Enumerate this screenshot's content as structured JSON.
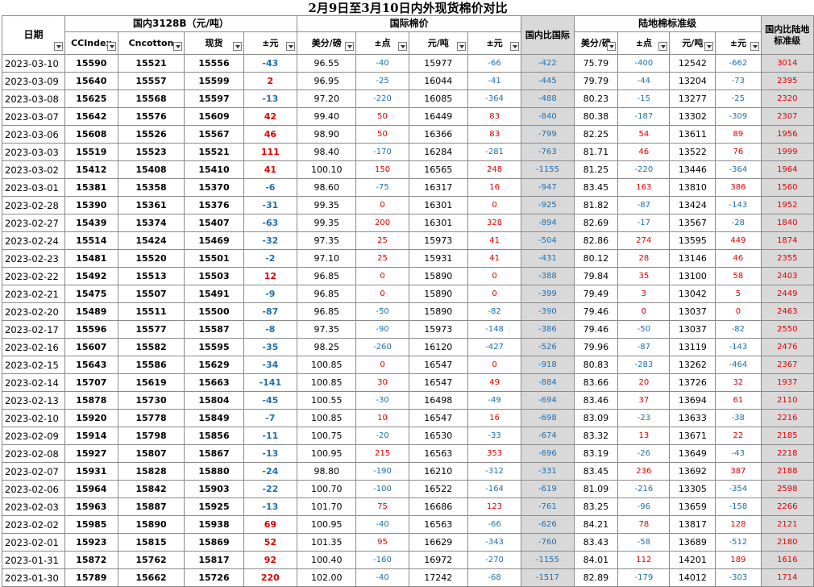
{
  "title": "2月9日至3月10日内外现货棉价对比",
  "groups": {
    "domestic": "国内3128B（元/吨）",
    "intl": "国际棉价",
    "compare_intl": "国内比国际",
    "land": "陆地棉标准级",
    "compare_land": "国内比陆地标准级"
  },
  "headers": {
    "date": "日期",
    "ccindex": "CCIndex",
    "cncotton": "Cncotton",
    "spot": "现货",
    "diff1": "±元",
    "intl_usd": "美分/磅",
    "intl_pt": "±点",
    "intl_cny": "元/吨",
    "intl_diff": "±元",
    "land_usd": "美分/磅",
    "land_pt": "±点",
    "land_cny": "元/吨",
    "land_diff": "±元"
  },
  "rows": [
    [
      "2023-03-10",
      "15590",
      "15521",
      "15556",
      "-43",
      "96.55",
      "-40",
      "15977",
      "-66",
      "-422",
      "75.79",
      "-400",
      "12542",
      "-662",
      "3014"
    ],
    [
      "2023-03-09",
      "15640",
      "15557",
      "15599",
      "2",
      "96.95",
      "-25",
      "16044",
      "-41",
      "-445",
      "79.79",
      "-44",
      "13204",
      "-73",
      "2395"
    ],
    [
      "2023-03-08",
      "15625",
      "15568",
      "15597",
      "-13",
      "97.20",
      "-220",
      "16085",
      "-364",
      "-488",
      "80.23",
      "-15",
      "13277",
      "-25",
      "2320"
    ],
    [
      "2023-03-07",
      "15642",
      "15576",
      "15609",
      "42",
      "99.40",
      "50",
      "16449",
      "83",
      "-840",
      "80.38",
      "-187",
      "13302",
      "-309",
      "2307"
    ],
    [
      "2023-03-06",
      "15608",
      "15526",
      "15567",
      "46",
      "98.90",
      "50",
      "16366",
      "83",
      "-799",
      "82.25",
      "54",
      "13611",
      "89",
      "1956"
    ],
    [
      "2023-03-03",
      "15519",
      "15523",
      "15521",
      "111",
      "98.40",
      "-170",
      "16284",
      "-281",
      "-763",
      "81.71",
      "46",
      "13522",
      "76",
      "1999"
    ],
    [
      "2023-03-02",
      "15412",
      "15408",
      "15410",
      "41",
      "100.10",
      "150",
      "16565",
      "248",
      "-1155",
      "81.25",
      "-220",
      "13446",
      "-364",
      "1964"
    ],
    [
      "2023-03-01",
      "15381",
      "15358",
      "15370",
      "-6",
      "98.60",
      "-75",
      "16317",
      "16",
      "-947",
      "83.45",
      "163",
      "13810",
      "386",
      "1560"
    ],
    [
      "2023-02-28",
      "15390",
      "15361",
      "15376",
      "-31",
      "99.35",
      "0",
      "16301",
      "0",
      "-925",
      "81.82",
      "-87",
      "13424",
      "-143",
      "1952"
    ],
    [
      "2023-02-27",
      "15439",
      "15374",
      "15407",
      "-63",
      "99.35",
      "200",
      "16301",
      "328",
      "-894",
      "82.69",
      "-17",
      "13567",
      "-28",
      "1840"
    ],
    [
      "2023-02-24",
      "15514",
      "15424",
      "15469",
      "-32",
      "97.35",
      "25",
      "15973",
      "41",
      "-504",
      "82.86",
      "274",
      "13595",
      "449",
      "1874"
    ],
    [
      "2023-02-23",
      "15481",
      "15520",
      "15501",
      "-2",
      "97.10",
      "25",
      "15931",
      "41",
      "-431",
      "80.12",
      "28",
      "13146",
      "46",
      "2355"
    ],
    [
      "2023-02-22",
      "15492",
      "15513",
      "15503",
      "12",
      "96.85",
      "0",
      "15890",
      "0",
      "-388",
      "79.84",
      "35",
      "13100",
      "58",
      "2403"
    ],
    [
      "2023-02-21",
      "15475",
      "15507",
      "15491",
      "-9",
      "96.85",
      "0",
      "15890",
      "0",
      "-399",
      "79.49",
      "3",
      "13042",
      "5",
      "2449"
    ],
    [
      "2023-02-20",
      "15489",
      "15511",
      "15500",
      "-87",
      "96.85",
      "-50",
      "15890",
      "-82",
      "-390",
      "79.46",
      "0",
      "13037",
      "0",
      "2463"
    ],
    [
      "2023-02-17",
      "15596",
      "15577",
      "15587",
      "-8",
      "97.35",
      "-90",
      "15973",
      "-148",
      "-386",
      "79.46",
      "-50",
      "13037",
      "-82",
      "2550"
    ],
    [
      "2023-02-16",
      "15607",
      "15582",
      "15595",
      "-35",
      "98.25",
      "-260",
      "16120",
      "-427",
      "-526",
      "79.96",
      "-87",
      "13119",
      "-143",
      "2476"
    ],
    [
      "2023-02-15",
      "15643",
      "15586",
      "15629",
      "-34",
      "100.85",
      "0",
      "16547",
      "0",
      "-918",
      "80.83",
      "-283",
      "13262",
      "-464",
      "2367"
    ],
    [
      "2023-02-14",
      "15707",
      "15619",
      "15663",
      "-141",
      "100.85",
      "30",
      "16547",
      "49",
      "-884",
      "83.66",
      "20",
      "13726",
      "32",
      "1937"
    ],
    [
      "2023-02-13",
      "15878",
      "15730",
      "15804",
      "-45",
      "100.55",
      "-30",
      "16498",
      "-49",
      "-694",
      "83.46",
      "37",
      "13694",
      "61",
      "2110"
    ],
    [
      "2023-02-10",
      "15920",
      "15778",
      "15849",
      "-7",
      "100.85",
      "10",
      "16547",
      "16",
      "-698",
      "83.09",
      "-23",
      "13633",
      "-38",
      "2216"
    ],
    [
      "2023-02-09",
      "15914",
      "15798",
      "15856",
      "-11",
      "100.75",
      "-20",
      "16530",
      "-33",
      "-674",
      "83.32",
      "13",
      "13671",
      "22",
      "2185"
    ],
    [
      "2023-02-08",
      "15927",
      "15807",
      "15867",
      "-13",
      "100.95",
      "215",
      "16563",
      "353",
      "-696",
      "83.19",
      "-26",
      "13649",
      "-43",
      "2218"
    ],
    [
      "2023-02-07",
      "15931",
      "15828",
      "15880",
      "-24",
      "98.80",
      "-190",
      "16210",
      "-312",
      "-331",
      "83.45",
      "236",
      "13692",
      "387",
      "2188"
    ],
    [
      "2023-02-06",
      "15964",
      "15842",
      "15903",
      "-22",
      "100.70",
      "-100",
      "16522",
      "-164",
      "-619",
      "81.09",
      "-216",
      "13305",
      "-354",
      "2598"
    ],
    [
      "2023-02-03",
      "15963",
      "15887",
      "15925",
      "-13",
      "101.70",
      "75",
      "16686",
      "123",
      "-761",
      "83.25",
      "-96",
      "13659",
      "-158",
      "2266"
    ],
    [
      "2023-02-02",
      "15985",
      "15890",
      "15938",
      "69",
      "100.95",
      "-40",
      "16563",
      "-66",
      "-626",
      "84.21",
      "78",
      "13817",
      "128",
      "2121"
    ],
    [
      "2023-02-01",
      "15923",
      "15815",
      "15869",
      "52",
      "101.35",
      "95",
      "16629",
      "-343",
      "-760",
      "83.43",
      "-58",
      "13689",
      "-512",
      "2180"
    ],
    [
      "2023-01-31",
      "15872",
      "15762",
      "15817",
      "92",
      "100.40",
      "-160",
      "16972",
      "-270",
      "-1155",
      "84.01",
      "112",
      "14201",
      "189",
      "1616"
    ],
    [
      "2023-01-30",
      "15789",
      "15662",
      "15726",
      "220",
      "102.00",
      "-40",
      "17242",
      "-68",
      "-1517",
      "82.89",
      "-179",
      "14012",
      "-303",
      "1714"
    ]
  ],
  "colors": {
    "red": "#e00000",
    "blue": "#1f6fb0",
    "gray": "#d9d9d9"
  }
}
